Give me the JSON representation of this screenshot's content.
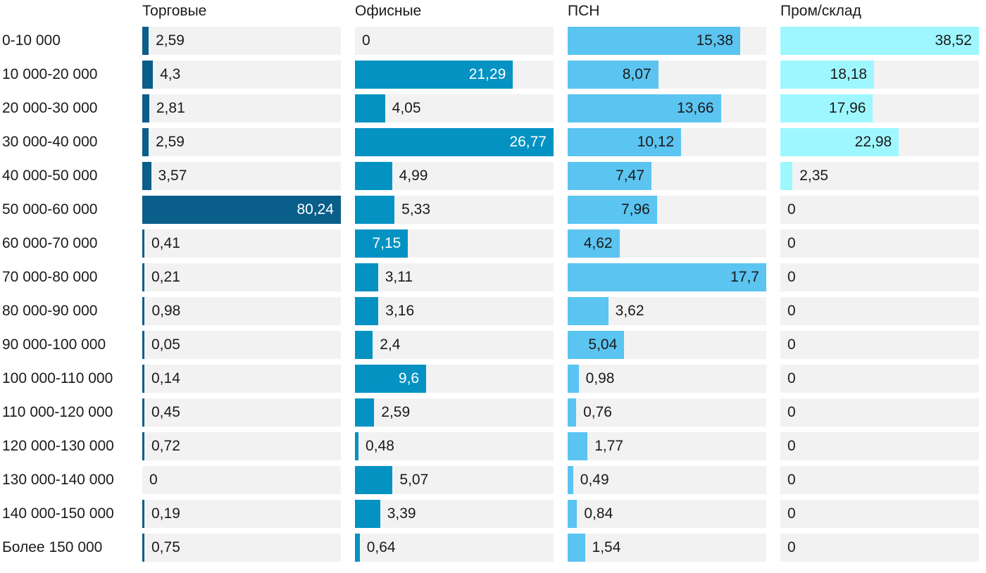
{
  "chart_data": {
    "type": "bar",
    "orientation": "horizontal",
    "layout": "small-multiples",
    "categories": [
      "0-10 000",
      "10 000-20 000",
      "20 000-30 000",
      "30 000-40 000",
      "40 000-50 000",
      "50 000-60 000",
      "60 000-70 000",
      "70 000-80 000",
      "80 000-90 000",
      "90 000-100 000",
      "100 000-110 000",
      "110 000-120 000",
      "120 000-130 000",
      "130 000-140 000",
      "140 000-150 000",
      "Более 150 000"
    ],
    "series": [
      {
        "name": "Торговые",
        "color": "#0a5e8a",
        "values": [
          2.59,
          4.3,
          2.81,
          2.59,
          3.57,
          80.24,
          0.41,
          0.21,
          0.98,
          0.05,
          0.14,
          0.45,
          0.72,
          0,
          0.19,
          0.75
        ],
        "labels": [
          "2,59",
          "4,3",
          "2,81",
          "2,59",
          "3,57",
          "80,24",
          "0,41",
          "0,21",
          "0,98",
          "0,05",
          "0,14",
          "0,45",
          "0,72",
          "0",
          "0,19",
          "0,75"
        ]
      },
      {
        "name": "Офисные",
        "color": "#0492c2",
        "values": [
          0,
          21.29,
          4.05,
          26.77,
          4.99,
          5.33,
          7.15,
          3.11,
          3.16,
          2.4,
          9.6,
          2.59,
          0.48,
          5.07,
          3.39,
          0.64
        ],
        "labels": [
          "0",
          "21,29",
          "4,05",
          "26,77",
          "4,99",
          "5,33",
          "7,15",
          "3,11",
          "3,16",
          "2,4",
          "9,6",
          "2,59",
          "0,48",
          "5,07",
          "3,39",
          "0,64"
        ]
      },
      {
        "name": "ПСН",
        "color": "#5bc4f1",
        "values": [
          15.38,
          8.07,
          13.66,
          10.12,
          7.47,
          7.96,
          4.62,
          17.7,
          3.62,
          5.04,
          0.98,
          0.76,
          1.77,
          0.49,
          0.84,
          1.54
        ],
        "labels": [
          "15,38",
          "8,07",
          "13,66",
          "10,12",
          "7,47",
          "7,96",
          "4,62",
          "17,7",
          "3,62",
          "5,04",
          "0,98",
          "0,76",
          "1,77",
          "0,49",
          "0,84",
          "1,54"
        ]
      },
      {
        "name": "Пром/склад",
        "color": "#9ef7ff",
        "values": [
          38.52,
          18.18,
          17.96,
          22.98,
          2.35,
          0,
          0,
          0,
          0,
          0,
          0,
          0,
          0,
          0,
          0,
          0
        ],
        "labels": [
          "38,52",
          "18,18",
          "17,96",
          "22,98",
          "2,35",
          "0",
          "0",
          "0",
          "0",
          "0",
          "0",
          "0",
          "0",
          "0",
          "0",
          "0"
        ]
      }
    ],
    "title": "",
    "xlabel": "",
    "ylabel": "",
    "grid": false,
    "legend": "none"
  }
}
